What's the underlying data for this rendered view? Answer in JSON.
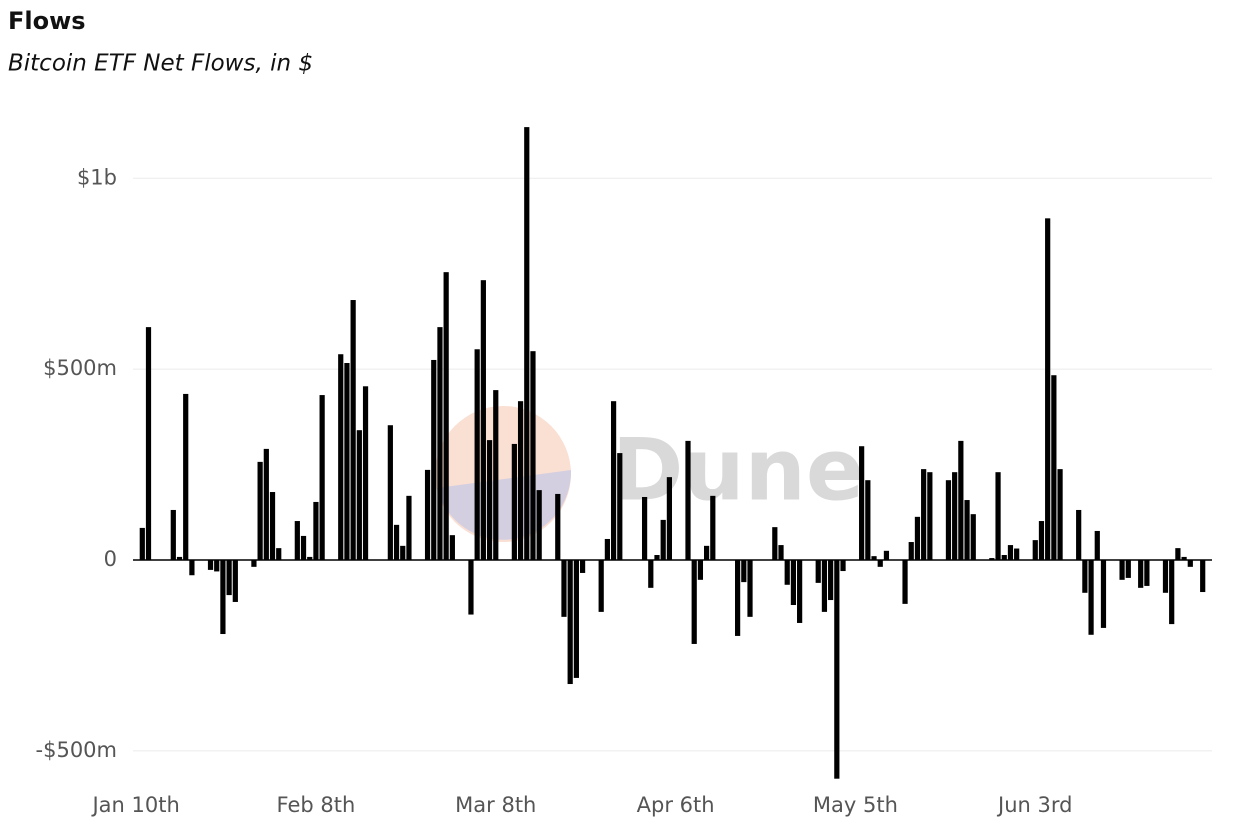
{
  "chart_data": {
    "type": "bar",
    "title": "Flows",
    "subtitle": "Bitcoin ETF Net Flows, in $",
    "watermark": "Dune",
    "categories": [
      "Jan 10th",
      null,
      null,
      null,
      null,
      null,
      null,
      null,
      null,
      null,
      null,
      null,
      null,
      null,
      null,
      null,
      null,
      null,
      null,
      null,
      null,
      null,
      null,
      null,
      null,
      null,
      null,
      null,
      null,
      "Feb 8th",
      null,
      null,
      null,
      null,
      null,
      null,
      null,
      null,
      null,
      null,
      null,
      null,
      null,
      null,
      null,
      null,
      null,
      null,
      null,
      null,
      null,
      null,
      null,
      null,
      null,
      null,
      null,
      null,
      "Mar 8th",
      null,
      null,
      null,
      null,
      null,
      null,
      null,
      null,
      null,
      null,
      null,
      null,
      null,
      null,
      null,
      null,
      null,
      null,
      null,
      null,
      null,
      null,
      null,
      null,
      null,
      null,
      null,
      null,
      "Apr 6th",
      null,
      null,
      null,
      null,
      null,
      null,
      null,
      null,
      null,
      null,
      null,
      null,
      null,
      null,
      null,
      null,
      null,
      null,
      null,
      null,
      null,
      null,
      null,
      null,
      null,
      null,
      null,
      null,
      "May 5th",
      null,
      null,
      null,
      null,
      null,
      null,
      null,
      null,
      null,
      null,
      null,
      null,
      null,
      null,
      null,
      null,
      null,
      null,
      null,
      null,
      null,
      null,
      null,
      null,
      null,
      null,
      null,
      null,
      "Jun 3rd",
      null,
      null,
      null,
      null,
      null,
      null,
      null,
      null,
      null,
      null,
      null,
      null,
      null,
      null,
      null,
      null,
      null,
      null,
      null,
      null,
      null,
      null,
      null,
      null,
      null,
      null,
      null,
      null
    ],
    "values": [
      null,
      84000000,
      610000000,
      null,
      null,
      null,
      131000000,
      8000000,
      435000000,
      -40000000,
      null,
      null,
      -26000000,
      -30000000,
      -194000000,
      -92000000,
      -110000000,
      null,
      null,
      -18000000,
      257000000,
      291000000,
      178000000,
      31000000,
      null,
      null,
      102000000,
      63000000,
      8000000,
      152000000,
      432000000,
      null,
      null,
      539000000,
      516000000,
      681000000,
      340000000,
      455000000,
      null,
      null,
      null,
      353000000,
      92000000,
      37000000,
      168000000,
      null,
      null,
      236000000,
      524000000,
      610000000,
      754000000,
      65000000,
      null,
      null,
      -143000000,
      552000000,
      733000000,
      314000000,
      445000000,
      null,
      null,
      304000000,
      416000000,
      1134000000,
      547000000,
      183000000,
      null,
      null,
      173000000,
      -149000000,
      -325000000,
      -309000000,
      -34000000,
      null,
      null,
      -136000000,
      55000000,
      416000000,
      280000000,
      null,
      null,
      null,
      165000000,
      -73000000,
      13000000,
      105000000,
      217000000,
      null,
      null,
      312000000,
      -220000000,
      -52000000,
      37000000,
      168000000,
      null,
      null,
      null,
      -199000000,
      -58000000,
      -149000000,
      null,
      null,
      null,
      86000000,
      39000000,
      -65000000,
      -118000000,
      -165000000,
      null,
      null,
      -60000000,
      -136000000,
      -105000000,
      -573000000,
      -29000000,
      null,
      null,
      298000000,
      209000000,
      10000000,
      -18000000,
      24000000,
      null,
      null,
      -115000000,
      47000000,
      113000000,
      238000000,
      230000000,
      null,
      null,
      209000000,
      230000000,
      312000000,
      157000000,
      120000000,
      null,
      null,
      5000000,
      230000000,
      13000000,
      39000000,
      30000000,
      null,
      null,
      52000000,
      102000000,
      895000000,
      484000000,
      238000000,
      null,
      null,
      131000000,
      -86000000,
      -196000000,
      76000000,
      -178000000,
      null,
      null,
      -52000000,
      -47000000,
      null,
      -73000000,
      -68000000,
      null,
      null,
      -86000000,
      -168000000,
      31000000,
      8000000,
      -18000000,
      null,
      -84000000,
      null
    ],
    "color": "#000000",
    "ylim": [
      -600000000,
      1150000000
    ],
    "yticks": [
      {
        "value": -500000000,
        "label": "-$500m"
      },
      0,
      {
        "value": 500000000,
        "label": "$500m"
      },
      {
        "value": 1000000000,
        "label": "$1b"
      }
    ],
    "grid": true
  }
}
